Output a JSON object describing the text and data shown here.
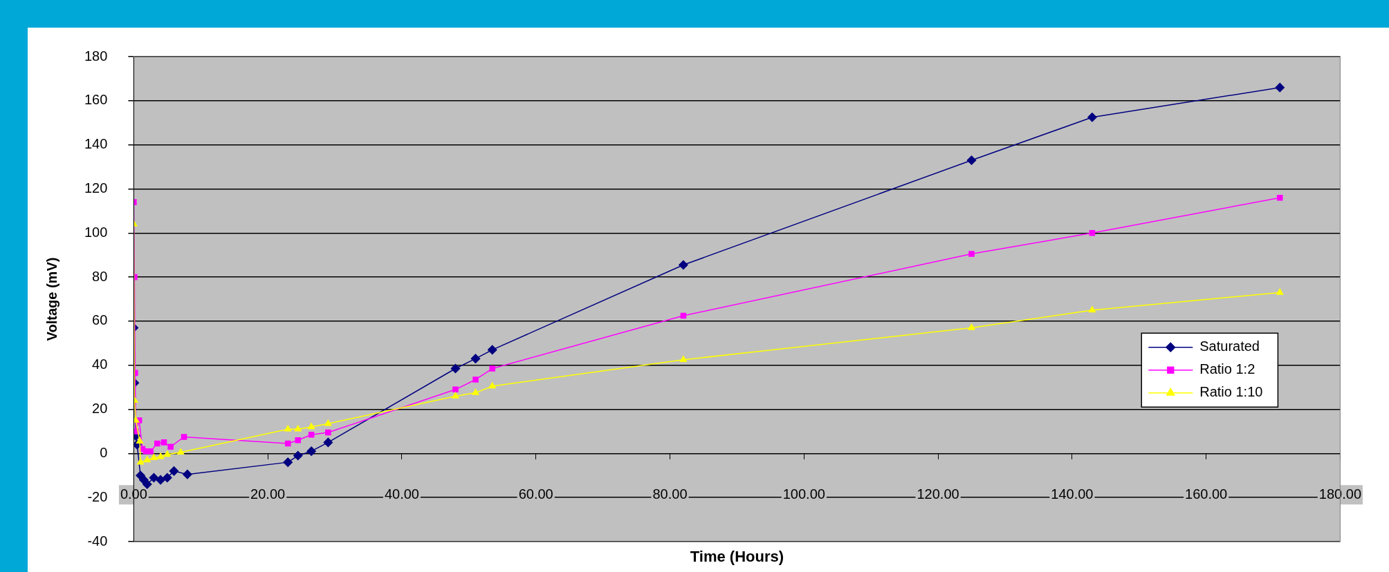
{
  "chart_data": {
    "type": "line",
    "xlabel": "Time (Hours)",
    "ylabel": "Voltage (mV)",
    "xlim": [
      0,
      180
    ],
    "xticks": [
      {
        "value": 0,
        "label": "0.00"
      },
      {
        "value": 20,
        "label": "20.00"
      },
      {
        "value": 40,
        "label": "40.00"
      },
      {
        "value": 60,
        "label": "60.00"
      },
      {
        "value": 80,
        "label": "80.00"
      },
      {
        "value": 100,
        "label": "100.00"
      },
      {
        "value": 120,
        "label": "120.00"
      },
      {
        "value": 140,
        "label": "140.00"
      },
      {
        "value": 160,
        "label": "160.00"
      },
      {
        "value": 180,
        "label": "180.00"
      }
    ],
    "ylim": [
      -40,
      180
    ],
    "yticks": [
      -40,
      -20,
      0,
      20,
      40,
      60,
      80,
      100,
      120,
      140,
      160,
      180
    ],
    "grid": "y",
    "legend": "right",
    "line_style": "solid",
    "series": [
      {
        "name": "Saturated",
        "color": "#000080",
        "marker": "diamond",
        "x": [
          0,
          0.1,
          0.3,
          0.5,
          1,
          1.5,
          2,
          3,
          4,
          5,
          6,
          8,
          23,
          24.5,
          26.5,
          29,
          48,
          51,
          53.5,
          82,
          125,
          143,
          171
        ],
        "values": [
          57,
          32,
          8,
          4,
          -10,
          -12,
          -14,
          -11,
          -12,
          -11,
          -8,
          -9.5,
          -4,
          -1,
          1,
          5,
          38.5,
          43,
          47,
          85.5,
          133,
          152.5,
          166
        ]
      },
      {
        "name": "Ratio 1:2",
        "color": "#ff00ff",
        "marker": "square",
        "x": [
          0,
          0.1,
          0.2,
          0.3,
          0.8,
          1.3,
          1.8,
          2.5,
          3.5,
          4.5,
          5.5,
          7.5,
          23,
          24.5,
          26.5,
          29,
          48,
          51,
          53.5,
          82,
          125,
          143,
          171
        ],
        "values": [
          114,
          80,
          36.5,
          10,
          15,
          2,
          1,
          1,
          4.5,
          5,
          3,
          7.5,
          4.5,
          6,
          8.5,
          9.5,
          29,
          33.5,
          38.5,
          62.5,
          90.5,
          100,
          116
        ]
      },
      {
        "name": "Ratio 1:10",
        "color": "#ffff00",
        "marker": "triangle",
        "x": [
          0,
          0.1,
          0.3,
          0.9,
          1,
          2,
          3,
          4,
          5,
          7,
          23,
          24.5,
          26.5,
          29,
          48,
          51,
          53.5,
          82,
          125,
          143,
          171
        ],
        "values": [
          104,
          24,
          15,
          5.5,
          -4,
          -3,
          -2,
          -1.5,
          -0.5,
          0.5,
          11,
          11,
          12,
          13.5,
          26,
          27.5,
          30.5,
          42.5,
          57,
          65,
          73
        ]
      }
    ]
  }
}
